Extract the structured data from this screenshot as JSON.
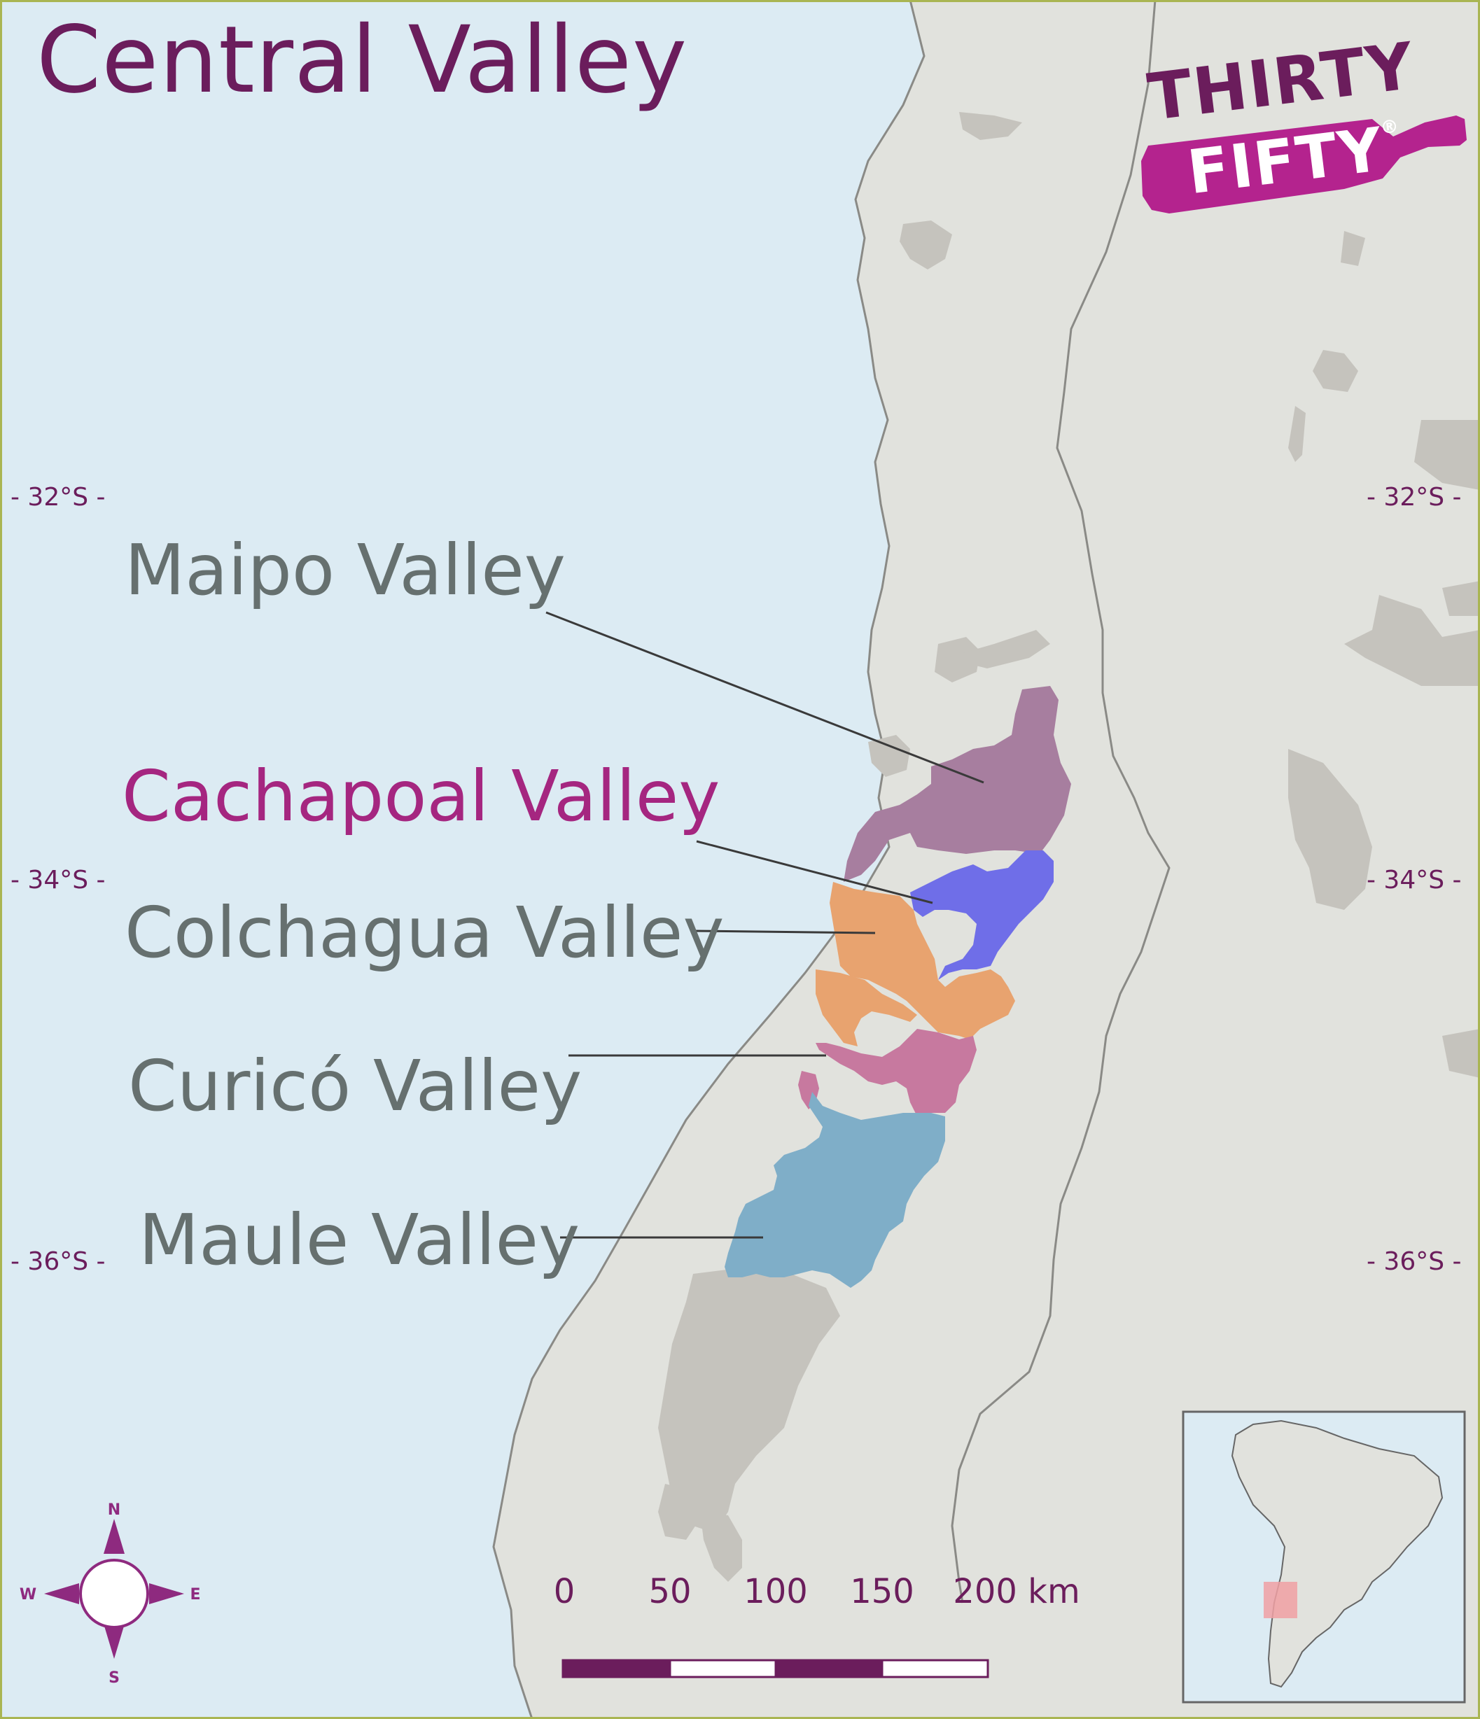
{
  "map": {
    "title": "Central Valley",
    "latitude_labels": {
      "lat_32": "- 32°S -",
      "lat_34": "- 34°S -",
      "lat_36": "- 36°S -"
    },
    "regions": [
      {
        "name": "Maipo Valley",
        "color": "#a77e9f",
        "highlighted": false
      },
      {
        "name": "Cachapoal Valley",
        "color": "#6f6ee8",
        "highlighted": true
      },
      {
        "name": "Colchagua Valley",
        "color": "#e8a36f",
        "highlighted": false
      },
      {
        "name": "Curicó Valley",
        "color": "#c7799f",
        "highlighted": false
      },
      {
        "name": "Maule Valley",
        "color": "#7faec8",
        "highlighted": false
      }
    ],
    "scale_bar": {
      "ticks": [
        "0",
        "50",
        "100",
        "150",
        "200 km"
      ]
    },
    "compass": {
      "n": "N",
      "s": "S",
      "e": "E",
      "w": "W"
    },
    "logo": {
      "line1": "THIRTY",
      "line2": "FIFTY",
      "mark": "®"
    },
    "colors": {
      "ocean": "#dcebf3",
      "land": "#e1e2dd",
      "terrain_patches": "#c5c3bd",
      "title_and_scale": "#6b1d5c",
      "highlight_label": "#a52680",
      "label": "#66706f",
      "frame": "#a9b552",
      "inset_marker": "#f0a0a3"
    }
  }
}
